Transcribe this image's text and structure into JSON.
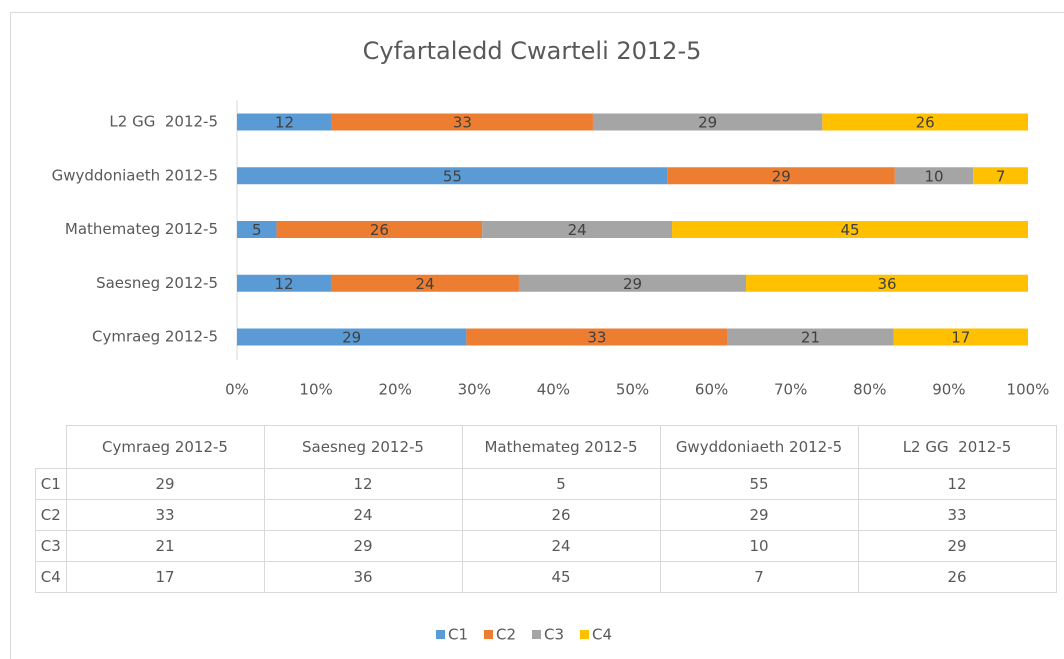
{
  "chart_data": {
    "type": "bar",
    "orientation": "horizontal",
    "stacking": "percent",
    "title": "Cyfartaledd Cwarteli 2012-5",
    "categories": [
      "Cymraeg 2012-5",
      "Saesneg 2012-5",
      "Mathemateg 2012-5",
      "Gwyddoniaeth 2012-5",
      "L2 GG  2012-5"
    ],
    "series": [
      {
        "name": "C1",
        "color": "#5b9bd5",
        "values": [
          29,
          12,
          5,
          55,
          12
        ]
      },
      {
        "name": "C2",
        "color": "#ed7d31",
        "values": [
          33,
          24,
          26,
          29,
          33
        ]
      },
      {
        "name": "C3",
        "color": "#a5a5a5",
        "values": [
          21,
          29,
          24,
          10,
          29
        ]
      },
      {
        "name": "C4",
        "color": "#ffc000",
        "values": [
          17,
          36,
          45,
          7,
          26
        ]
      }
    ],
    "xlim": [
      0,
      100
    ],
    "xticks": [
      {
        "value": 0,
        "label": "0%"
      },
      {
        "value": 10,
        "label": "10%"
      },
      {
        "value": 20,
        "label": "20%"
      },
      {
        "value": 30,
        "label": "30%"
      },
      {
        "value": 40,
        "label": "40%"
      },
      {
        "value": 50,
        "label": "50%"
      },
      {
        "value": 60,
        "label": "60%"
      },
      {
        "value": 70,
        "label": "70%"
      },
      {
        "value": 80,
        "label": "80%"
      },
      {
        "value": 90,
        "label": "90%"
      },
      {
        "value": 100,
        "label": "100%"
      }
    ],
    "grid": false,
    "data_table": true,
    "legend": "bottom"
  }
}
